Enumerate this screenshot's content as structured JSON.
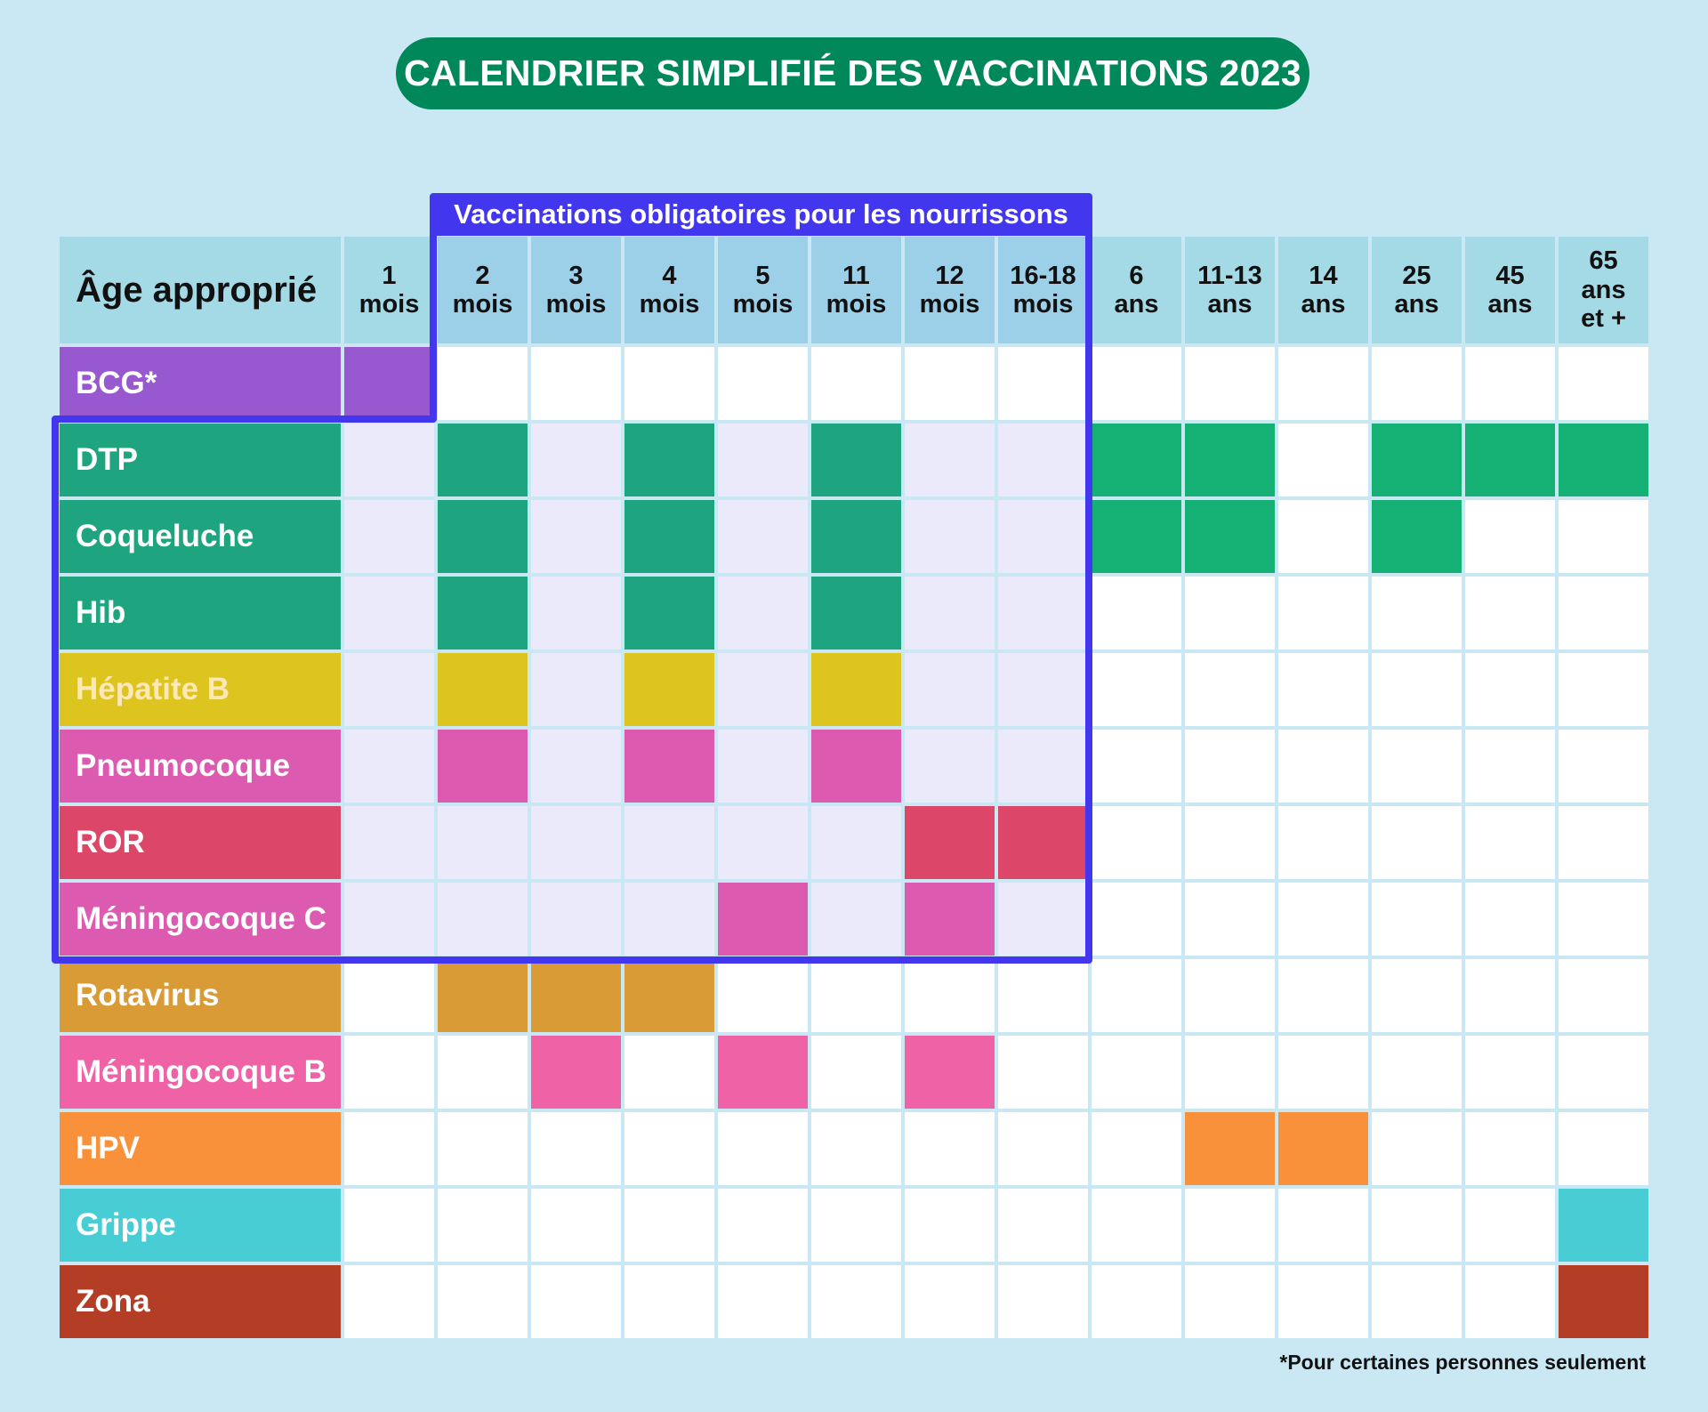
{
  "title": "CALENDRIER SIMPLIFIÉ DES VACCINATIONS 2023",
  "header_label": "Âge approprié",
  "mandatory_label": "Vaccinations obligatoires pour les nourrissons",
  "footnote": "*Pour certaines personnes seulement",
  "colors": {
    "mandatory_border": "#4237ef",
    "mandatory_cell_bg": "#ebeafb",
    "cell_bg": "#ffffff",
    "title_bg": "#00875a"
  },
  "ages": [
    {
      "lines": [
        "1",
        "mois"
      ]
    },
    {
      "lines": [
        "2",
        "mois"
      ]
    },
    {
      "lines": [
        "3",
        "mois"
      ]
    },
    {
      "lines": [
        "4",
        "mois"
      ]
    },
    {
      "lines": [
        "5",
        "mois"
      ]
    },
    {
      "lines": [
        "11",
        "mois"
      ]
    },
    {
      "lines": [
        "12",
        "mois"
      ]
    },
    {
      "lines": [
        "16-18",
        "mois"
      ]
    },
    {
      "lines": [
        "6",
        "ans"
      ]
    },
    {
      "lines": [
        "11-13",
        "ans"
      ]
    },
    {
      "lines": [
        "14",
        "ans"
      ]
    },
    {
      "lines": [
        "25",
        "ans"
      ]
    },
    {
      "lines": [
        "45",
        "ans"
      ]
    },
    {
      "lines": [
        "65",
        "ans",
        "et +"
      ]
    }
  ],
  "vaccines": [
    {
      "name": "BCG*",
      "color": "#9858cf",
      "label_color": "#ffffff",
      "doses": [
        0
      ]
    },
    {
      "name": "DTP",
      "color": "#1ea57f",
      "adult_color": "#15b074",
      "label_color": "#ffffff",
      "doses": [
        1,
        3,
        5,
        8,
        9,
        11,
        12,
        13
      ]
    },
    {
      "name": "Coqueluche",
      "color": "#1ea57f",
      "adult_color": "#15b074",
      "label_color": "#ffffff",
      "doses": [
        1,
        3,
        5,
        8,
        9,
        11
      ]
    },
    {
      "name": "Hib",
      "color": "#1ea57f",
      "label_color": "#ffffff",
      "doses": [
        1,
        3,
        5
      ]
    },
    {
      "name": "Hépatite B",
      "color": "#dec41f",
      "label_color": "#fde9b8",
      "doses": [
        1,
        3,
        5
      ]
    },
    {
      "name": "Pneumocoque",
      "color": "#dc5bb1",
      "label_color": "#ffffff",
      "doses": [
        1,
        3,
        5
      ]
    },
    {
      "name": "ROR",
      "color": "#dc4769",
      "label_color": "#ffffff",
      "doses": [
        6,
        7
      ]
    },
    {
      "name": "Méningocoque C",
      "color": "#dc5bb1",
      "label_color": "#ffffff",
      "doses": [
        4,
        6
      ]
    },
    {
      "name": "Rotavirus",
      "color": "#d99b36",
      "label_color": "#ffffff",
      "doses": [
        1,
        2,
        3
      ]
    },
    {
      "name": "Méningocoque B",
      "color": "#ef62a6",
      "label_color": "#ffffff",
      "doses": [
        2,
        4,
        6
      ]
    },
    {
      "name": "HPV",
      "color": "#f8913a",
      "label_color": "#ffffff",
      "doses": [
        9,
        10
      ]
    },
    {
      "name": "Grippe",
      "color": "#48cdd5",
      "label_color": "#ffffff",
      "doses": [
        13
      ]
    },
    {
      "name": "Zona",
      "color": "#b43d25",
      "label_color": "#ffffff",
      "doses": [
        13
      ]
    }
  ]
}
